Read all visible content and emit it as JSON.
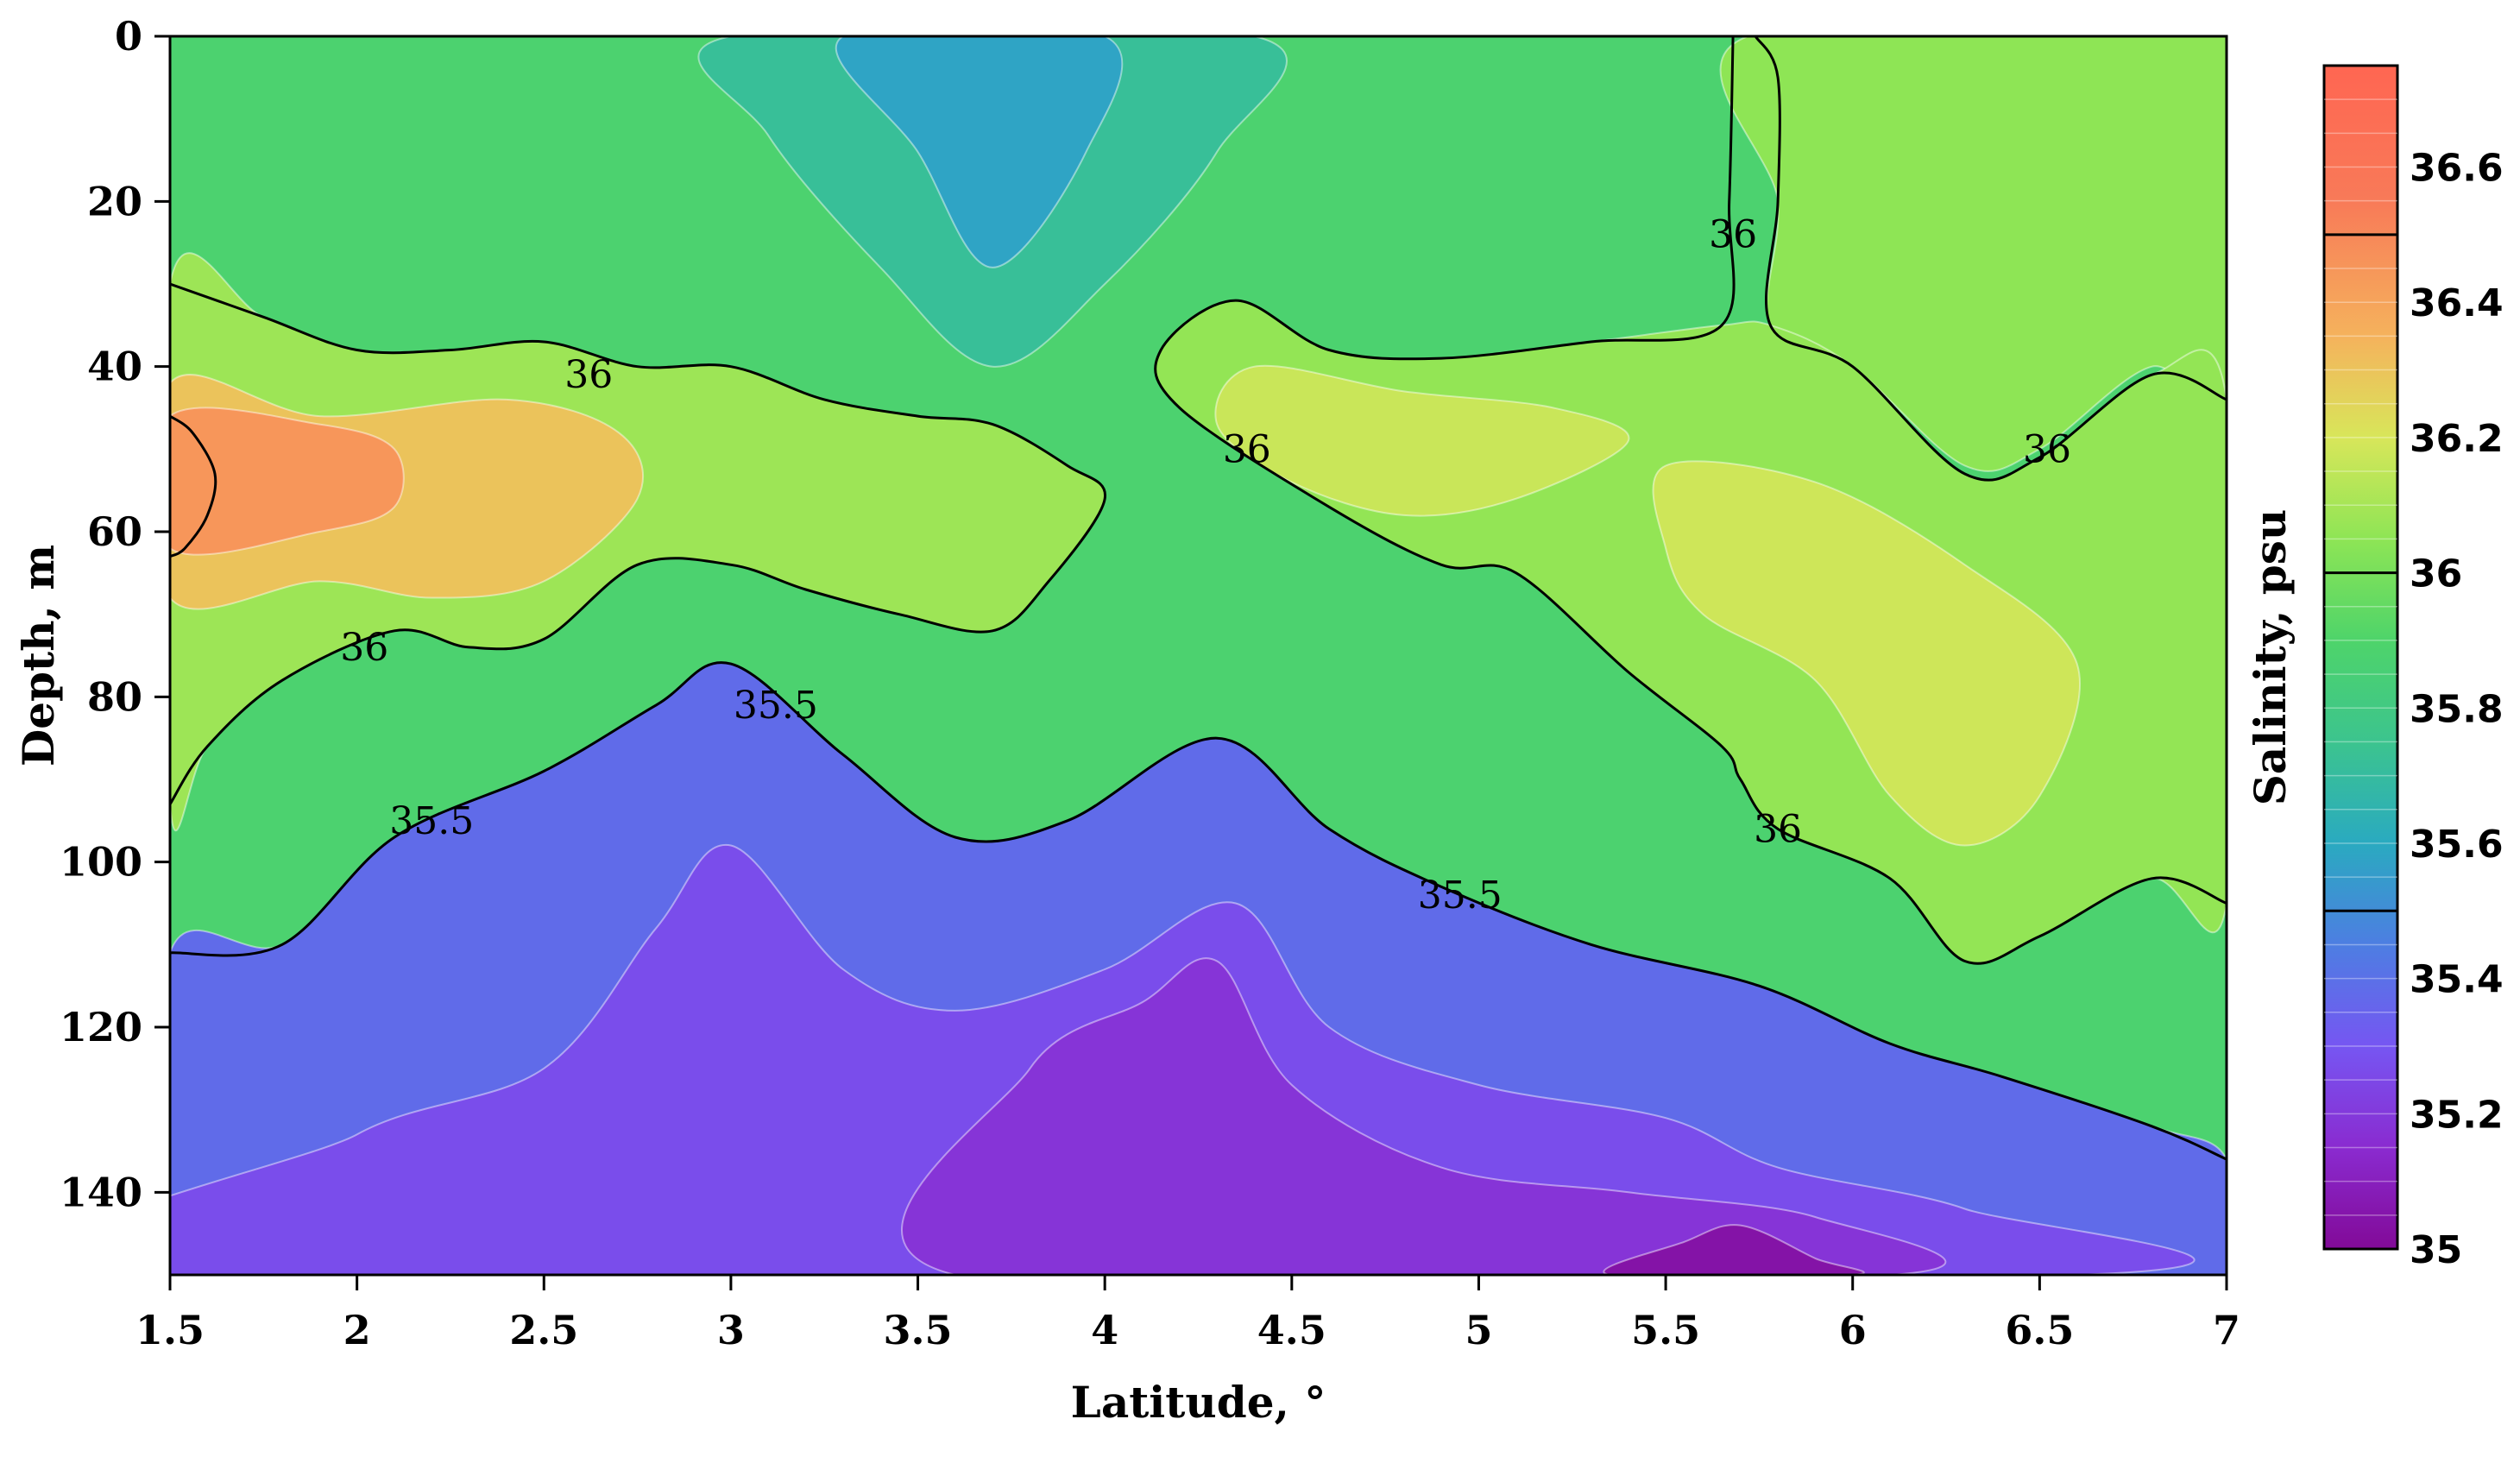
{
  "chart_data": {
    "type": "heatmap",
    "title": "",
    "xlabel": "Latitude, °",
    "ylabel": "Depth, m",
    "colorbar_label": "Salinity, psu",
    "xlim": [
      1.5,
      7
    ],
    "ylim": [
      0,
      150
    ],
    "y_inverted": true,
    "x_ticks": [
      "1.5",
      "2",
      "2.5",
      "3",
      "3.5",
      "4",
      "4.5",
      "5",
      "5.5",
      "6",
      "6.5",
      "7"
    ],
    "y_ticks": [
      "0",
      "20",
      "40",
      "60",
      "80",
      "100",
      "120",
      "140"
    ],
    "colorbar": {
      "range": [
        35.0,
        36.75
      ],
      "ticks": [
        "35",
        "35.2",
        "35.4",
        "35.6",
        "35.8",
        "36",
        "36.2",
        "36.4",
        "36.6"
      ],
      "stops": [
        {
          "v": 35.0,
          "color": "#820a98"
        },
        {
          "v": 35.15,
          "color": "#8a2bd0"
        },
        {
          "v": 35.3,
          "color": "#7656f2"
        },
        {
          "v": 35.45,
          "color": "#4d7ee2"
        },
        {
          "v": 35.6,
          "color": "#2aaac0"
        },
        {
          "v": 35.75,
          "color": "#3cc48e"
        },
        {
          "v": 35.9,
          "color": "#4ed46a"
        },
        {
          "v": 36.05,
          "color": "#8ee555"
        },
        {
          "v": 36.2,
          "color": "#d8e65a"
        },
        {
          "v": 36.35,
          "color": "#f5b25c"
        },
        {
          "v": 36.55,
          "color": "#f87a58"
        },
        {
          "v": 36.75,
          "color": "#ff6652"
        }
      ],
      "marked_levels": [
        35.5,
        36.0,
        36.5
      ]
    },
    "contour_lines": [
      {
        "level": "36",
        "label_positions": [
          [
            2.62,
            41
          ],
          [
            2.02,
            74
          ]
        ],
        "points": [
          [
            1.5,
            30
          ],
          [
            1.75,
            34
          ],
          [
            2.0,
            38
          ],
          [
            2.25,
            38
          ],
          [
            2.5,
            37
          ],
          [
            2.75,
            40
          ],
          [
            3.0,
            40
          ],
          [
            3.25,
            44
          ],
          [
            3.5,
            46
          ],
          [
            3.7,
            47
          ],
          [
            3.9,
            52
          ],
          [
            4.0,
            56
          ],
          [
            3.85,
            66
          ],
          [
            3.7,
            72
          ],
          [
            3.45,
            70
          ],
          [
            3.2,
            67
          ],
          [
            3.0,
            64
          ],
          [
            2.75,
            64
          ],
          [
            2.5,
            73
          ],
          [
            2.3,
            74
          ],
          [
            2.1,
            72
          ],
          [
            1.8,
            78
          ],
          [
            1.6,
            86
          ],
          [
            1.5,
            93
          ]
        ]
      },
      {
        "level": "36",
        "label_positions": [
          [
            5.68,
            24
          ],
          [
            6.52,
            50
          ],
          [
            4.38,
            50
          ],
          [
            5.8,
            96
          ]
        ],
        "points": [
          [
            5.68,
            0
          ],
          [
            5.67,
            20
          ],
          [
            5.65,
            35
          ],
          [
            5.3,
            37
          ],
          [
            4.9,
            39
          ],
          [
            4.6,
            38
          ],
          [
            4.35,
            32
          ],
          [
            4.15,
            38
          ],
          [
            4.2,
            45
          ],
          [
            4.6,
            57
          ],
          [
            4.9,
            64
          ],
          [
            5.1,
            65
          ],
          [
            5.4,
            77
          ],
          [
            5.65,
            86
          ],
          [
            5.7,
            90
          ],
          [
            5.8,
            96
          ],
          [
            6.1,
            102
          ],
          [
            6.3,
            112
          ],
          [
            6.5,
            109
          ],
          [
            6.8,
            102
          ],
          [
            7.0,
            105
          ]
        ]
      },
      {
        "level": "36",
        "label_positions": [],
        "points": [
          [
            5.74,
            0
          ],
          [
            5.8,
            5
          ],
          [
            5.8,
            20
          ],
          [
            5.78,
            35
          ],
          [
            6.0,
            40
          ],
          [
            6.3,
            53
          ],
          [
            6.5,
            51
          ],
          [
            6.8,
            41
          ],
          [
            7.0,
            44
          ]
        ]
      },
      {
        "level": "35.5",
        "label_positions": [
          [
            3.12,
            81
          ],
          [
            2.2,
            95
          ],
          [
            4.95,
            104
          ]
        ],
        "points": [
          [
            1.5,
            111
          ],
          [
            1.8,
            110
          ],
          [
            2.1,
            97
          ],
          [
            2.5,
            89
          ],
          [
            2.8,
            81
          ],
          [
            3.0,
            76
          ],
          [
            3.3,
            87
          ],
          [
            3.6,
            97
          ],
          [
            3.9,
            95
          ],
          [
            4.3,
            85
          ],
          [
            4.6,
            96
          ],
          [
            4.9,
            103
          ],
          [
            5.3,
            110
          ],
          [
            5.75,
            115
          ],
          [
            6.1,
            122
          ],
          [
            6.4,
            126
          ],
          [
            6.8,
            132
          ],
          [
            7.0,
            136
          ]
        ]
      },
      {
        "level": "36.5",
        "label_positions": [],
        "points": [
          [
            1.5,
            46
          ],
          [
            1.56,
            48
          ],
          [
            1.62,
            53
          ],
          [
            1.6,
            58
          ],
          [
            1.54,
            62
          ],
          [
            1.5,
            63
          ]
        ]
      }
    ],
    "field_shapes": [
      {
        "name": "background",
        "salinity": 35.88,
        "points": [
          [
            1.5,
            0
          ],
          [
            7.0,
            0
          ],
          [
            7.0,
            150
          ],
          [
            1.5,
            150
          ]
        ]
      },
      {
        "name": "right-surface-36",
        "salinity": 36.05,
        "points": [
          [
            5.72,
            0
          ],
          [
            7.0,
            0
          ],
          [
            7.0,
            44
          ],
          [
            6.8,
            40
          ],
          [
            6.5,
            50
          ],
          [
            6.3,
            52
          ],
          [
            6.0,
            40
          ],
          [
            5.78,
            35
          ],
          [
            5.8,
            20
          ]
        ]
      },
      {
        "name": "central-band-36",
        "salinity": 36.06,
        "points": [
          [
            4.15,
            38
          ],
          [
            4.35,
            32
          ],
          [
            4.6,
            38
          ],
          [
            4.9,
            39
          ],
          [
            5.3,
            37
          ],
          [
            5.65,
            35
          ],
          [
            5.78,
            35
          ],
          [
            6.0,
            40
          ],
          [
            6.3,
            53
          ],
          [
            6.5,
            51
          ],
          [
            6.8,
            41
          ],
          [
            7.0,
            44
          ],
          [
            7.0,
            105
          ],
          [
            6.8,
            102
          ],
          [
            6.5,
            109
          ],
          [
            6.3,
            112
          ],
          [
            6.1,
            102
          ],
          [
            5.8,
            96
          ],
          [
            5.7,
            90
          ],
          [
            5.65,
            86
          ],
          [
            5.4,
            77
          ],
          [
            5.1,
            65
          ],
          [
            4.9,
            64
          ],
          [
            4.6,
            57
          ],
          [
            4.2,
            45
          ]
        ]
      },
      {
        "name": "left-band-36",
        "salinity": 36.08,
        "points": [
          [
            1.5,
            30
          ],
          [
            1.75,
            34
          ],
          [
            2.0,
            38
          ],
          [
            2.25,
            38
          ],
          [
            2.5,
            37
          ],
          [
            2.75,
            40
          ],
          [
            3.0,
            40
          ],
          [
            3.25,
            44
          ],
          [
            3.5,
            46
          ],
          [
            3.7,
            47
          ],
          [
            3.9,
            52
          ],
          [
            4.0,
            56
          ],
          [
            3.85,
            66
          ],
          [
            3.7,
            72
          ],
          [
            3.45,
            70
          ],
          [
            3.2,
            67
          ],
          [
            3.0,
            64
          ],
          [
            2.75,
            64
          ],
          [
            2.5,
            73
          ],
          [
            2.3,
            74
          ],
          [
            2.1,
            72
          ],
          [
            1.8,
            78
          ],
          [
            1.6,
            86
          ],
          [
            1.5,
            93
          ]
        ]
      },
      {
        "name": "left-core",
        "salinity": 36.3,
        "points": [
          [
            1.5,
            42
          ],
          [
            1.9,
            46
          ],
          [
            2.4,
            44
          ],
          [
            2.7,
            48
          ],
          [
            2.75,
            56
          ],
          [
            2.5,
            66
          ],
          [
            2.2,
            68
          ],
          [
            1.9,
            66
          ],
          [
            1.5,
            68
          ]
        ]
      },
      {
        "name": "left-core-inner",
        "salinity": 36.45,
        "points": [
          [
            1.5,
            46
          ],
          [
            1.9,
            47
          ],
          [
            2.1,
            50
          ],
          [
            2.1,
            57
          ],
          [
            1.9,
            60
          ],
          [
            1.5,
            62
          ]
        ]
      },
      {
        "name": "central-core",
        "salinity": 36.17,
        "points": [
          [
            4.4,
            40
          ],
          [
            4.8,
            43
          ],
          [
            5.2,
            45
          ],
          [
            5.4,
            49
          ],
          [
            5.1,
            56
          ],
          [
            4.8,
            58
          ],
          [
            4.5,
            54
          ],
          [
            4.3,
            47
          ]
        ]
      },
      {
        "name": "right-core",
        "salinity": 36.18,
        "points": [
          [
            5.5,
            52
          ],
          [
            5.9,
            54
          ],
          [
            6.3,
            64
          ],
          [
            6.6,
            76
          ],
          [
            6.5,
            92
          ],
          [
            6.3,
            98
          ],
          [
            6.1,
            92
          ],
          [
            5.9,
            78
          ],
          [
            5.6,
            70
          ],
          [
            5.5,
            62
          ]
        ]
      },
      {
        "name": "surface-low",
        "salinity": 35.72,
        "points": [
          [
            3.0,
            0
          ],
          [
            4.4,
            0
          ],
          [
            4.3,
            14
          ],
          [
            4.0,
            30
          ],
          [
            3.7,
            40
          ],
          [
            3.4,
            28
          ],
          [
            3.1,
            12
          ]
        ]
      },
      {
        "name": "surface-low-core",
        "salinity": 35.58,
        "points": [
          [
            3.3,
            0
          ],
          [
            4.0,
            0
          ],
          [
            3.95,
            14
          ],
          [
            3.7,
            28
          ],
          [
            3.5,
            14
          ]
        ]
      },
      {
        "name": "below-35.5",
        "salinity": 35.38,
        "points": [
          [
            1.5,
            111
          ],
          [
            1.8,
            110
          ],
          [
            2.1,
            97
          ],
          [
            2.5,
            89
          ],
          [
            2.8,
            81
          ],
          [
            3.0,
            76
          ],
          [
            3.3,
            87
          ],
          [
            3.6,
            97
          ],
          [
            3.9,
            95
          ],
          [
            4.3,
            85
          ],
          [
            4.6,
            96
          ],
          [
            4.9,
            103
          ],
          [
            5.3,
            110
          ],
          [
            5.75,
            115
          ],
          [
            6.1,
            122
          ],
          [
            6.4,
            126
          ],
          [
            6.8,
            132
          ],
          [
            7.0,
            136
          ],
          [
            7.0,
            150
          ],
          [
            1.5,
            150
          ]
        ]
      },
      {
        "name": "deep-low",
        "salinity": 35.27,
        "points": [
          [
            1.5,
            150
          ],
          [
            2.0,
            133
          ],
          [
            2.5,
            125
          ],
          [
            2.8,
            108
          ],
          [
            3.0,
            98
          ],
          [
            3.3,
            113
          ],
          [
            3.6,
            118
          ],
          [
            4.0,
            113
          ],
          [
            4.35,
            105
          ],
          [
            4.6,
            120
          ],
          [
            5.0,
            127
          ],
          [
            5.5,
            131
          ],
          [
            5.8,
            137
          ],
          [
            6.3,
            142
          ],
          [
            6.6,
            150
          ]
        ]
      },
      {
        "name": "deep-lower",
        "salinity": 35.18,
        "points": [
          [
            3.6,
            150
          ],
          [
            3.8,
            125
          ],
          [
            4.1,
            117
          ],
          [
            4.3,
            112
          ],
          [
            4.5,
            127
          ],
          [
            4.9,
            137
          ],
          [
            5.4,
            140
          ],
          [
            5.9,
            143
          ],
          [
            6.1,
            150
          ]
        ]
      },
      {
        "name": "deep-min",
        "salinity": 35.04,
        "points": [
          [
            5.35,
            150
          ],
          [
            5.55,
            146
          ],
          [
            5.7,
            144
          ],
          [
            5.9,
            148
          ],
          [
            6.0,
            150
          ]
        ]
      }
    ]
  }
}
